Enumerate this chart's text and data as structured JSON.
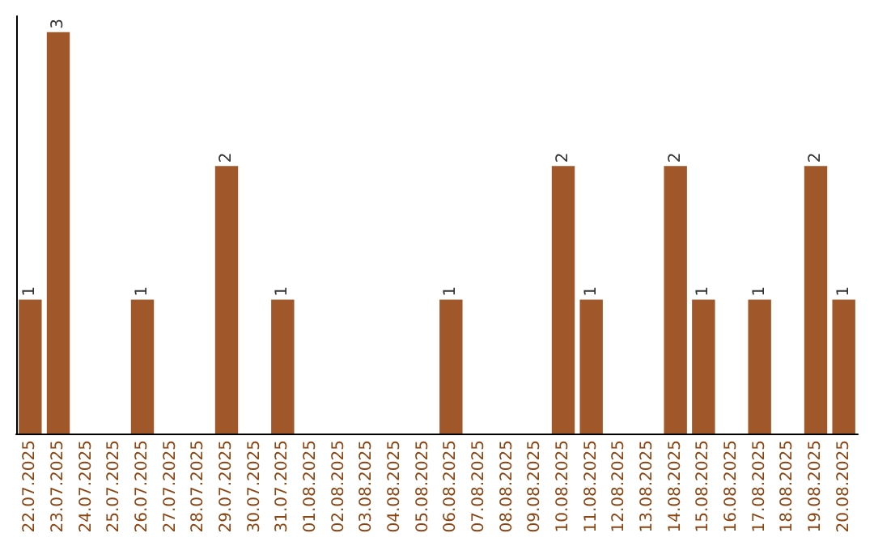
{
  "chart_data": {
    "type": "bar",
    "categories": [
      "22.07.2025",
      "23.07.2025",
      "24.07.2025",
      "25.07.2025",
      "26.07.2025",
      "27.07.2025",
      "28.07.2025",
      "29.07.2025",
      "30.07.2025",
      "31.07.2025",
      "01.08.2025",
      "02.08.2025",
      "03.08.2025",
      "04.08.2025",
      "05.08.2025",
      "06.08.2025",
      "07.08.2025",
      "08.08.2025",
      "09.08.2025",
      "10.08.2025",
      "11.08.2025",
      "12.08.2025",
      "13.08.2025",
      "14.08.2025",
      "15.08.2025",
      "16.08.2025",
      "17.08.2025",
      "18.08.2025",
      "19.08.2025",
      "20.08.2025"
    ],
    "values": [
      1,
      3,
      0,
      0,
      1,
      0,
      0,
      2,
      0,
      1,
      0,
      0,
      0,
      0,
      0,
      1,
      0,
      0,
      0,
      2,
      1,
      0,
      0,
      2,
      1,
      0,
      1,
      0,
      2,
      1
    ],
    "value_labels": [
      "1",
      "3",
      null,
      null,
      "1",
      null,
      null,
      "2",
      null,
      "1",
      null,
      null,
      null,
      null,
      null,
      "1",
      null,
      null,
      null,
      "2",
      "1",
      null,
      null,
      "2",
      "1",
      null,
      "1",
      null,
      "2",
      "1"
    ],
    "color": "#a0582a",
    "tick_labels": "x"
  }
}
